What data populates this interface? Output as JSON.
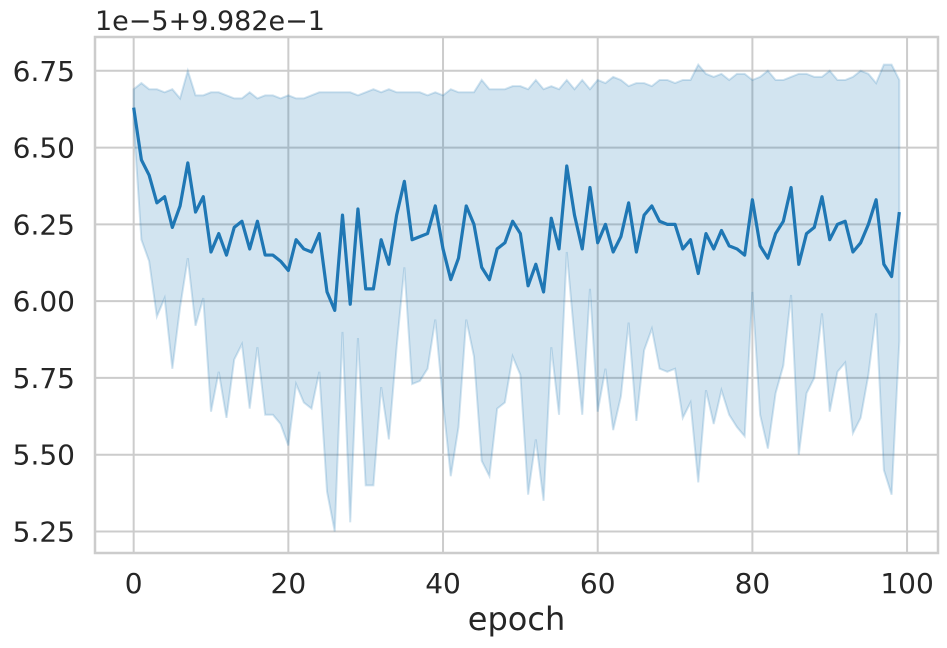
{
  "chart_data": {
    "type": "line",
    "xlabel": "epoch",
    "ylabel": "",
    "offset_text": "1e−5+9.982e−1",
    "xlim": [
      -5,
      104
    ],
    "ylim": [
      5.18,
      6.86
    ],
    "xticks": [
      0,
      20,
      40,
      60,
      80,
      100
    ],
    "xtick_labels": [
      "0",
      "20",
      "40",
      "60",
      "80",
      "100"
    ],
    "yticks": [
      5.25,
      5.5,
      5.75,
      6.0,
      6.25,
      6.5,
      6.75
    ],
    "ytick_labels": [
      "5.25",
      "5.50",
      "5.75",
      "6.00",
      "6.25",
      "6.50",
      "6.75"
    ],
    "grid": true,
    "line_color": "#1f77b4",
    "band_fill": "#1f77b4",
    "series": [
      {
        "x": [
          0,
          1,
          2,
          3,
          4,
          5,
          6,
          7,
          8,
          9,
          10,
          11,
          12,
          13,
          14,
          15,
          16,
          17,
          18,
          19,
          20,
          21,
          22,
          23,
          24,
          25,
          26,
          27,
          28,
          29,
          30,
          31,
          32,
          33,
          34,
          35,
          36,
          37,
          38,
          39,
          40,
          41,
          42,
          43,
          44,
          45,
          46,
          47,
          48,
          49,
          50,
          51,
          52,
          53,
          54,
          55,
          56,
          57,
          58,
          59,
          60,
          61,
          62,
          63,
          64,
          65,
          66,
          67,
          68,
          69,
          70,
          71,
          72,
          73,
          74,
          75,
          76,
          77,
          78,
          79,
          80,
          81,
          82,
          83,
          84,
          85,
          86,
          87,
          88,
          89,
          90,
          91,
          92,
          93,
          94,
          95,
          96,
          97,
          98,
          99
        ],
        "mean": [
          6.63,
          6.46,
          6.41,
          6.32,
          6.34,
          6.24,
          6.31,
          6.45,
          6.29,
          6.34,
          6.16,
          6.22,
          6.15,
          6.24,
          6.26,
          6.17,
          6.26,
          6.15,
          6.15,
          6.13,
          6.1,
          6.2,
          6.17,
          6.16,
          6.22,
          6.03,
          5.97,
          6.28,
          5.99,
          6.3,
          6.04,
          6.04,
          6.2,
          6.12,
          6.28,
          6.39,
          6.2,
          6.21,
          6.22,
          6.31,
          6.17,
          6.07,
          6.14,
          6.31,
          6.25,
          6.11,
          6.07,
          6.17,
          6.19,
          6.26,
          6.22,
          6.05,
          6.12,
          6.03,
          6.27,
          6.17,
          6.44,
          6.28,
          6.17,
          6.37,
          6.19,
          6.25,
          6.16,
          6.21,
          6.32,
          6.16,
          6.28,
          6.31,
          6.26,
          6.25,
          6.25,
          6.17,
          6.2,
          6.09,
          6.22,
          6.17,
          6.23,
          6.18,
          6.17,
          6.15,
          6.33,
          6.18,
          6.14,
          6.22,
          6.26,
          6.37,
          6.12,
          6.22,
          6.24,
          6.34,
          6.2,
          6.25,
          6.26,
          6.16,
          6.19,
          6.25,
          6.33,
          6.12,
          6.08,
          6.29
        ],
        "upper": [
          6.69,
          6.71,
          6.69,
          6.69,
          6.68,
          6.69,
          6.66,
          6.75,
          6.67,
          6.67,
          6.68,
          6.68,
          6.67,
          6.66,
          6.66,
          6.68,
          6.66,
          6.67,
          6.67,
          6.66,
          6.67,
          6.66,
          6.66,
          6.67,
          6.68,
          6.68,
          6.68,
          6.68,
          6.68,
          6.67,
          6.68,
          6.69,
          6.68,
          6.69,
          6.68,
          6.68,
          6.68,
          6.68,
          6.67,
          6.68,
          6.67,
          6.69,
          6.68,
          6.68,
          6.68,
          6.72,
          6.69,
          6.69,
          6.69,
          6.7,
          6.7,
          6.69,
          6.72,
          6.69,
          6.7,
          6.69,
          6.72,
          6.69,
          6.72,
          6.69,
          6.72,
          6.71,
          6.73,
          6.72,
          6.7,
          6.71,
          6.71,
          6.7,
          6.72,
          6.72,
          6.71,
          6.72,
          6.72,
          6.77,
          6.74,
          6.73,
          6.74,
          6.72,
          6.74,
          6.74,
          6.72,
          6.73,
          6.75,
          6.72,
          6.72,
          6.73,
          6.74,
          6.74,
          6.73,
          6.73,
          6.75,
          6.72,
          6.72,
          6.73,
          6.75,
          6.74,
          6.71,
          6.77,
          6.77,
          6.72
        ],
        "lower": [
          6.58,
          6.2,
          6.13,
          5.95,
          6.01,
          5.78,
          5.98,
          6.14,
          5.92,
          6.01,
          5.64,
          5.77,
          5.62,
          5.81,
          5.86,
          5.65,
          5.85,
          5.63,
          5.63,
          5.6,
          5.53,
          5.73,
          5.67,
          5.65,
          5.77,
          5.38,
          5.25,
          5.9,
          5.28,
          5.88,
          5.4,
          5.4,
          5.72,
          5.55,
          5.85,
          6.11,
          5.73,
          5.74,
          5.78,
          5.94,
          5.67,
          5.43,
          5.59,
          5.94,
          5.82,
          5.48,
          5.43,
          5.65,
          5.67,
          5.82,
          5.76,
          5.37,
          5.55,
          5.35,
          5.85,
          5.63,
          6.16,
          5.88,
          5.63,
          6.04,
          5.64,
          5.78,
          5.58,
          5.69,
          5.93,
          5.61,
          5.84,
          5.91,
          5.78,
          5.77,
          5.78,
          5.62,
          5.67,
          5.41,
          5.71,
          5.6,
          5.71,
          5.63,
          5.59,
          5.56,
          6.03,
          5.63,
          5.52,
          5.7,
          5.79,
          6.02,
          5.5,
          5.7,
          5.75,
          5.96,
          5.64,
          5.77,
          5.8,
          5.57,
          5.62,
          5.76,
          5.96,
          5.45,
          5.37,
          5.87
        ]
      }
    ]
  }
}
